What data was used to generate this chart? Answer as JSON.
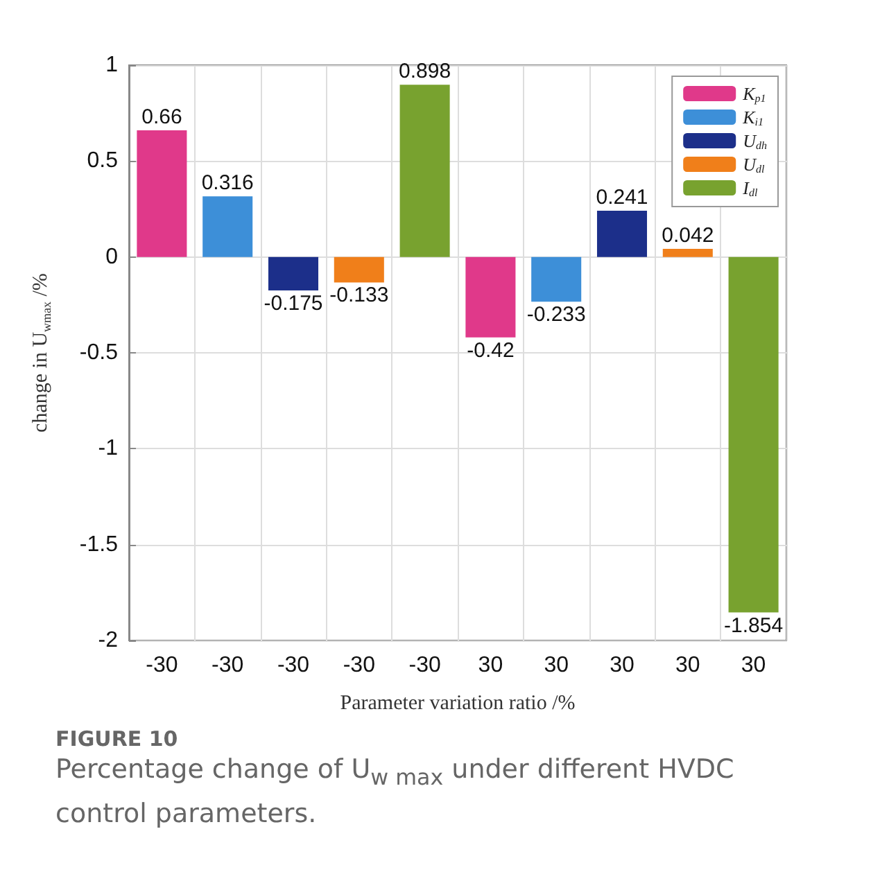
{
  "chart_data": {
    "type": "bar",
    "title": "FIGURE 10",
    "subtitle": "Percentage change of U$_{w max}$ under different HVDC control parameters.",
    "xlabel": "Parameter variation ratio /%",
    "ylabel": "change in U$_{wmax}$ /%",
    "categories": [
      "-30",
      "-30",
      "-30",
      "-30",
      "-30",
      "30",
      "30",
      "30",
      "30",
      "30"
    ],
    "series": [
      {
        "name": "K$_{p1}$",
        "color": "#e0398a",
        "values": [
          0.66,
          null,
          null,
          null,
          null,
          -0.42,
          null,
          null,
          null,
          null
        ]
      },
      {
        "name": "K$_{i1}$",
        "color": "#3d8fd8",
        "values": [
          null,
          0.316,
          null,
          null,
          null,
          null,
          -0.233,
          null,
          null,
          null
        ]
      },
      {
        "name": "U$_{dh}$",
        "color": "#1c2f8a",
        "values": [
          null,
          null,
          -0.175,
          null,
          null,
          null,
          null,
          0.241,
          null,
          null
        ]
      },
      {
        "name": "U$_{dl}$",
        "color": "#f07f1a",
        "values": [
          null,
          null,
          null,
          -0.133,
          null,
          null,
          null,
          null,
          0.042,
          null
        ]
      },
      {
        "name": "I$_{dl}$",
        "color": "#78a22f",
        "values": [
          null,
          null,
          null,
          null,
          0.898,
          null,
          null,
          null,
          null,
          -1.854
        ]
      }
    ],
    "ylim": [
      -2,
      1
    ],
    "yticks": [
      -2,
      -1.5,
      -1,
      -0.5,
      0,
      0.5,
      1
    ],
    "grid": true,
    "legend": "top right",
    "data_labels": true
  }
}
